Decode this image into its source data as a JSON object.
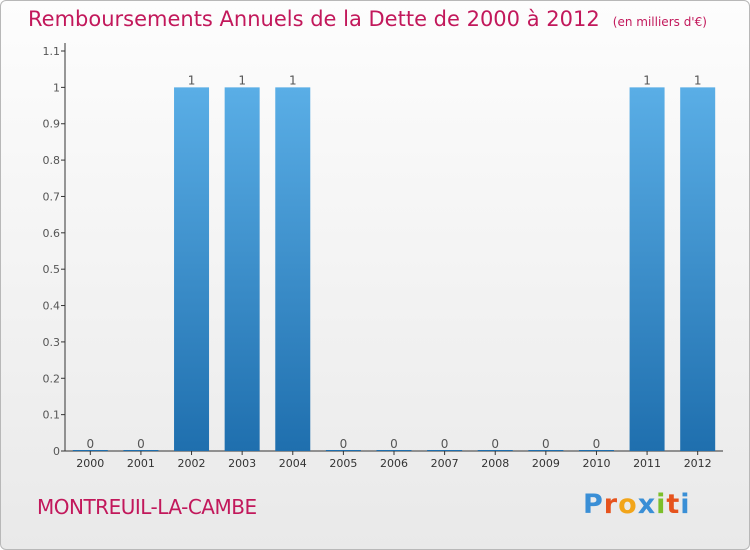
{
  "chart_data": {
    "type": "bar",
    "title": "Remboursements Annuels de la Dette de 2000 à 2012",
    "subtitle": "(en milliers d'€)",
    "categories": [
      "2000",
      "2001",
      "2002",
      "2003",
      "2004",
      "2005",
      "2006",
      "2007",
      "2008",
      "2009",
      "2010",
      "2011",
      "2012"
    ],
    "values": [
      0,
      0,
      1,
      1,
      1,
      0,
      0,
      0,
      0,
      0,
      0,
      1,
      1
    ],
    "data_labels": [
      "0",
      "0",
      "1",
      "1",
      "1",
      "0",
      "0",
      "0",
      "0",
      "0",
      "0",
      "1",
      "1"
    ],
    "ylim": [
      0,
      1.1
    ],
    "yticks": [
      0,
      0.1,
      0.2,
      0.3,
      0.4,
      0.5,
      0.6,
      0.7,
      0.8,
      0.9,
      1,
      1.1
    ],
    "ytick_labels": [
      "0",
      "0.1",
      "0.2",
      "0.3",
      "0.4",
      "0.5",
      "0.6",
      "0.7",
      "0.8",
      "0.9",
      "1",
      "1.1"
    ],
    "grid": false,
    "bar_color_top": "#5aaee6",
    "bar_color_bottom": "#1f6fae"
  },
  "footer": {
    "commune": "MONTREUIL-LA-CAMBE",
    "logo_text": "Proxiti",
    "logo_colors": [
      "#3a8fd6",
      "#e6531d",
      "#f2a51a",
      "#3a8fd6",
      "#7cbf2a",
      "#e6531d",
      "#3a8fd6"
    ]
  },
  "colors": {
    "title": "#c2185b",
    "axis": "#333333",
    "label": "#555555"
  }
}
